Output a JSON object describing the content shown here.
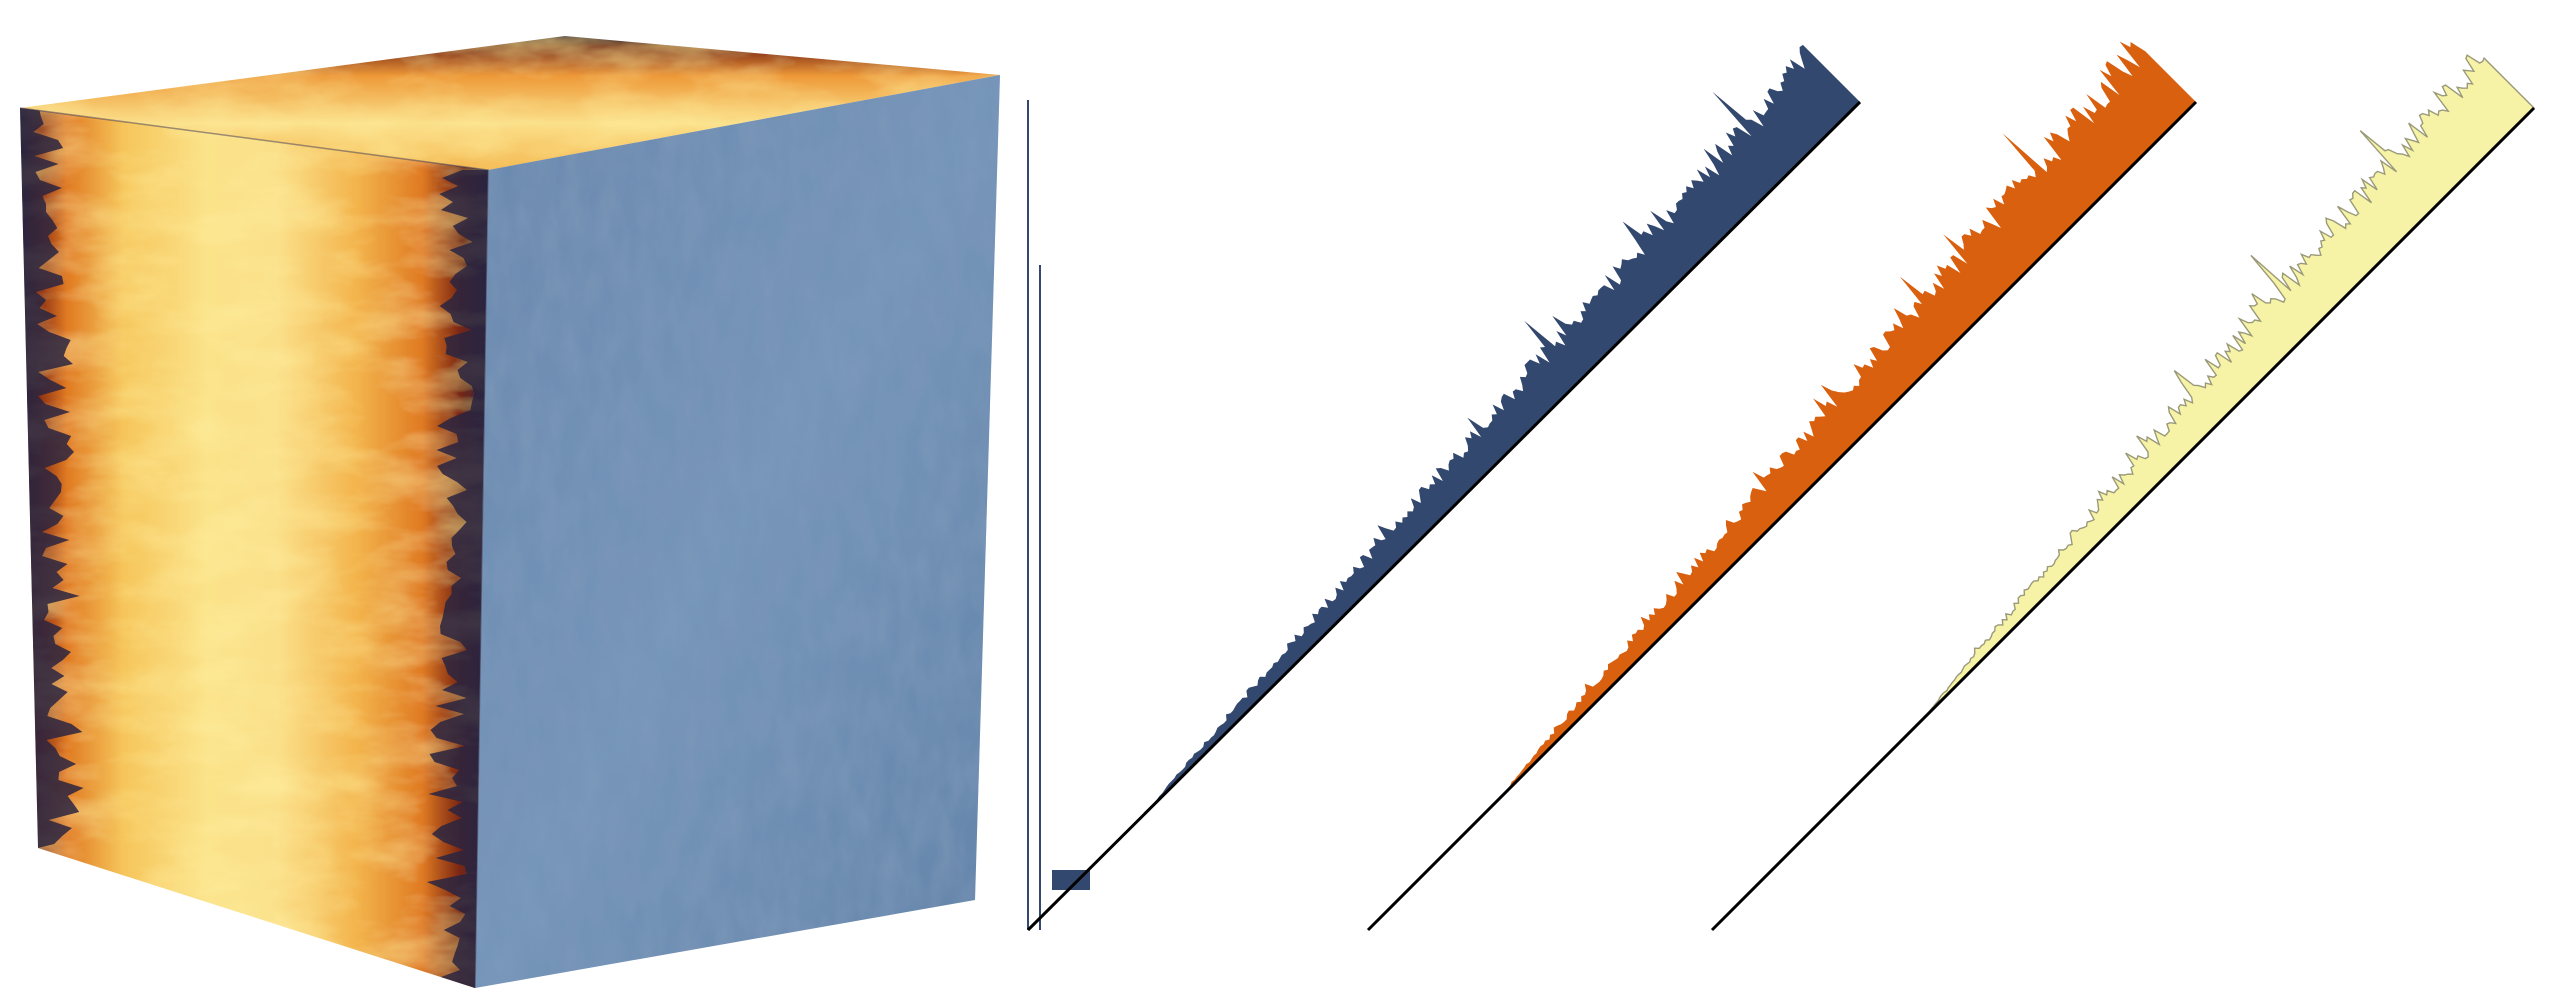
{
  "colors": {
    "background": "#ffffff",
    "flame_dark": "#2a2540",
    "flame_mid": "#d9661c",
    "flame_orange": "#f0a03a",
    "flame_light": "#fbe38a",
    "cube_side": "#6f8fb3",
    "cube_side_dark": "#4f6d92",
    "histogram_navy": "#33486e",
    "histogram_orange": "#d9600e",
    "histogram_yellow": "#f7f3a6",
    "histogram_yellow_outline": "#9a9a7a",
    "baseline": "#000000"
  },
  "scene": {
    "cube": {
      "front_face": "flame-texture",
      "right_face": "noise-texture",
      "top_face": "flame-texture"
    },
    "histograms": [
      {
        "series": "navy",
        "fill_level": 0.92
      },
      {
        "series": "orange",
        "fill_level": 0.95
      },
      {
        "series": "yellow",
        "fill_level": 0.88
      }
    ]
  }
}
